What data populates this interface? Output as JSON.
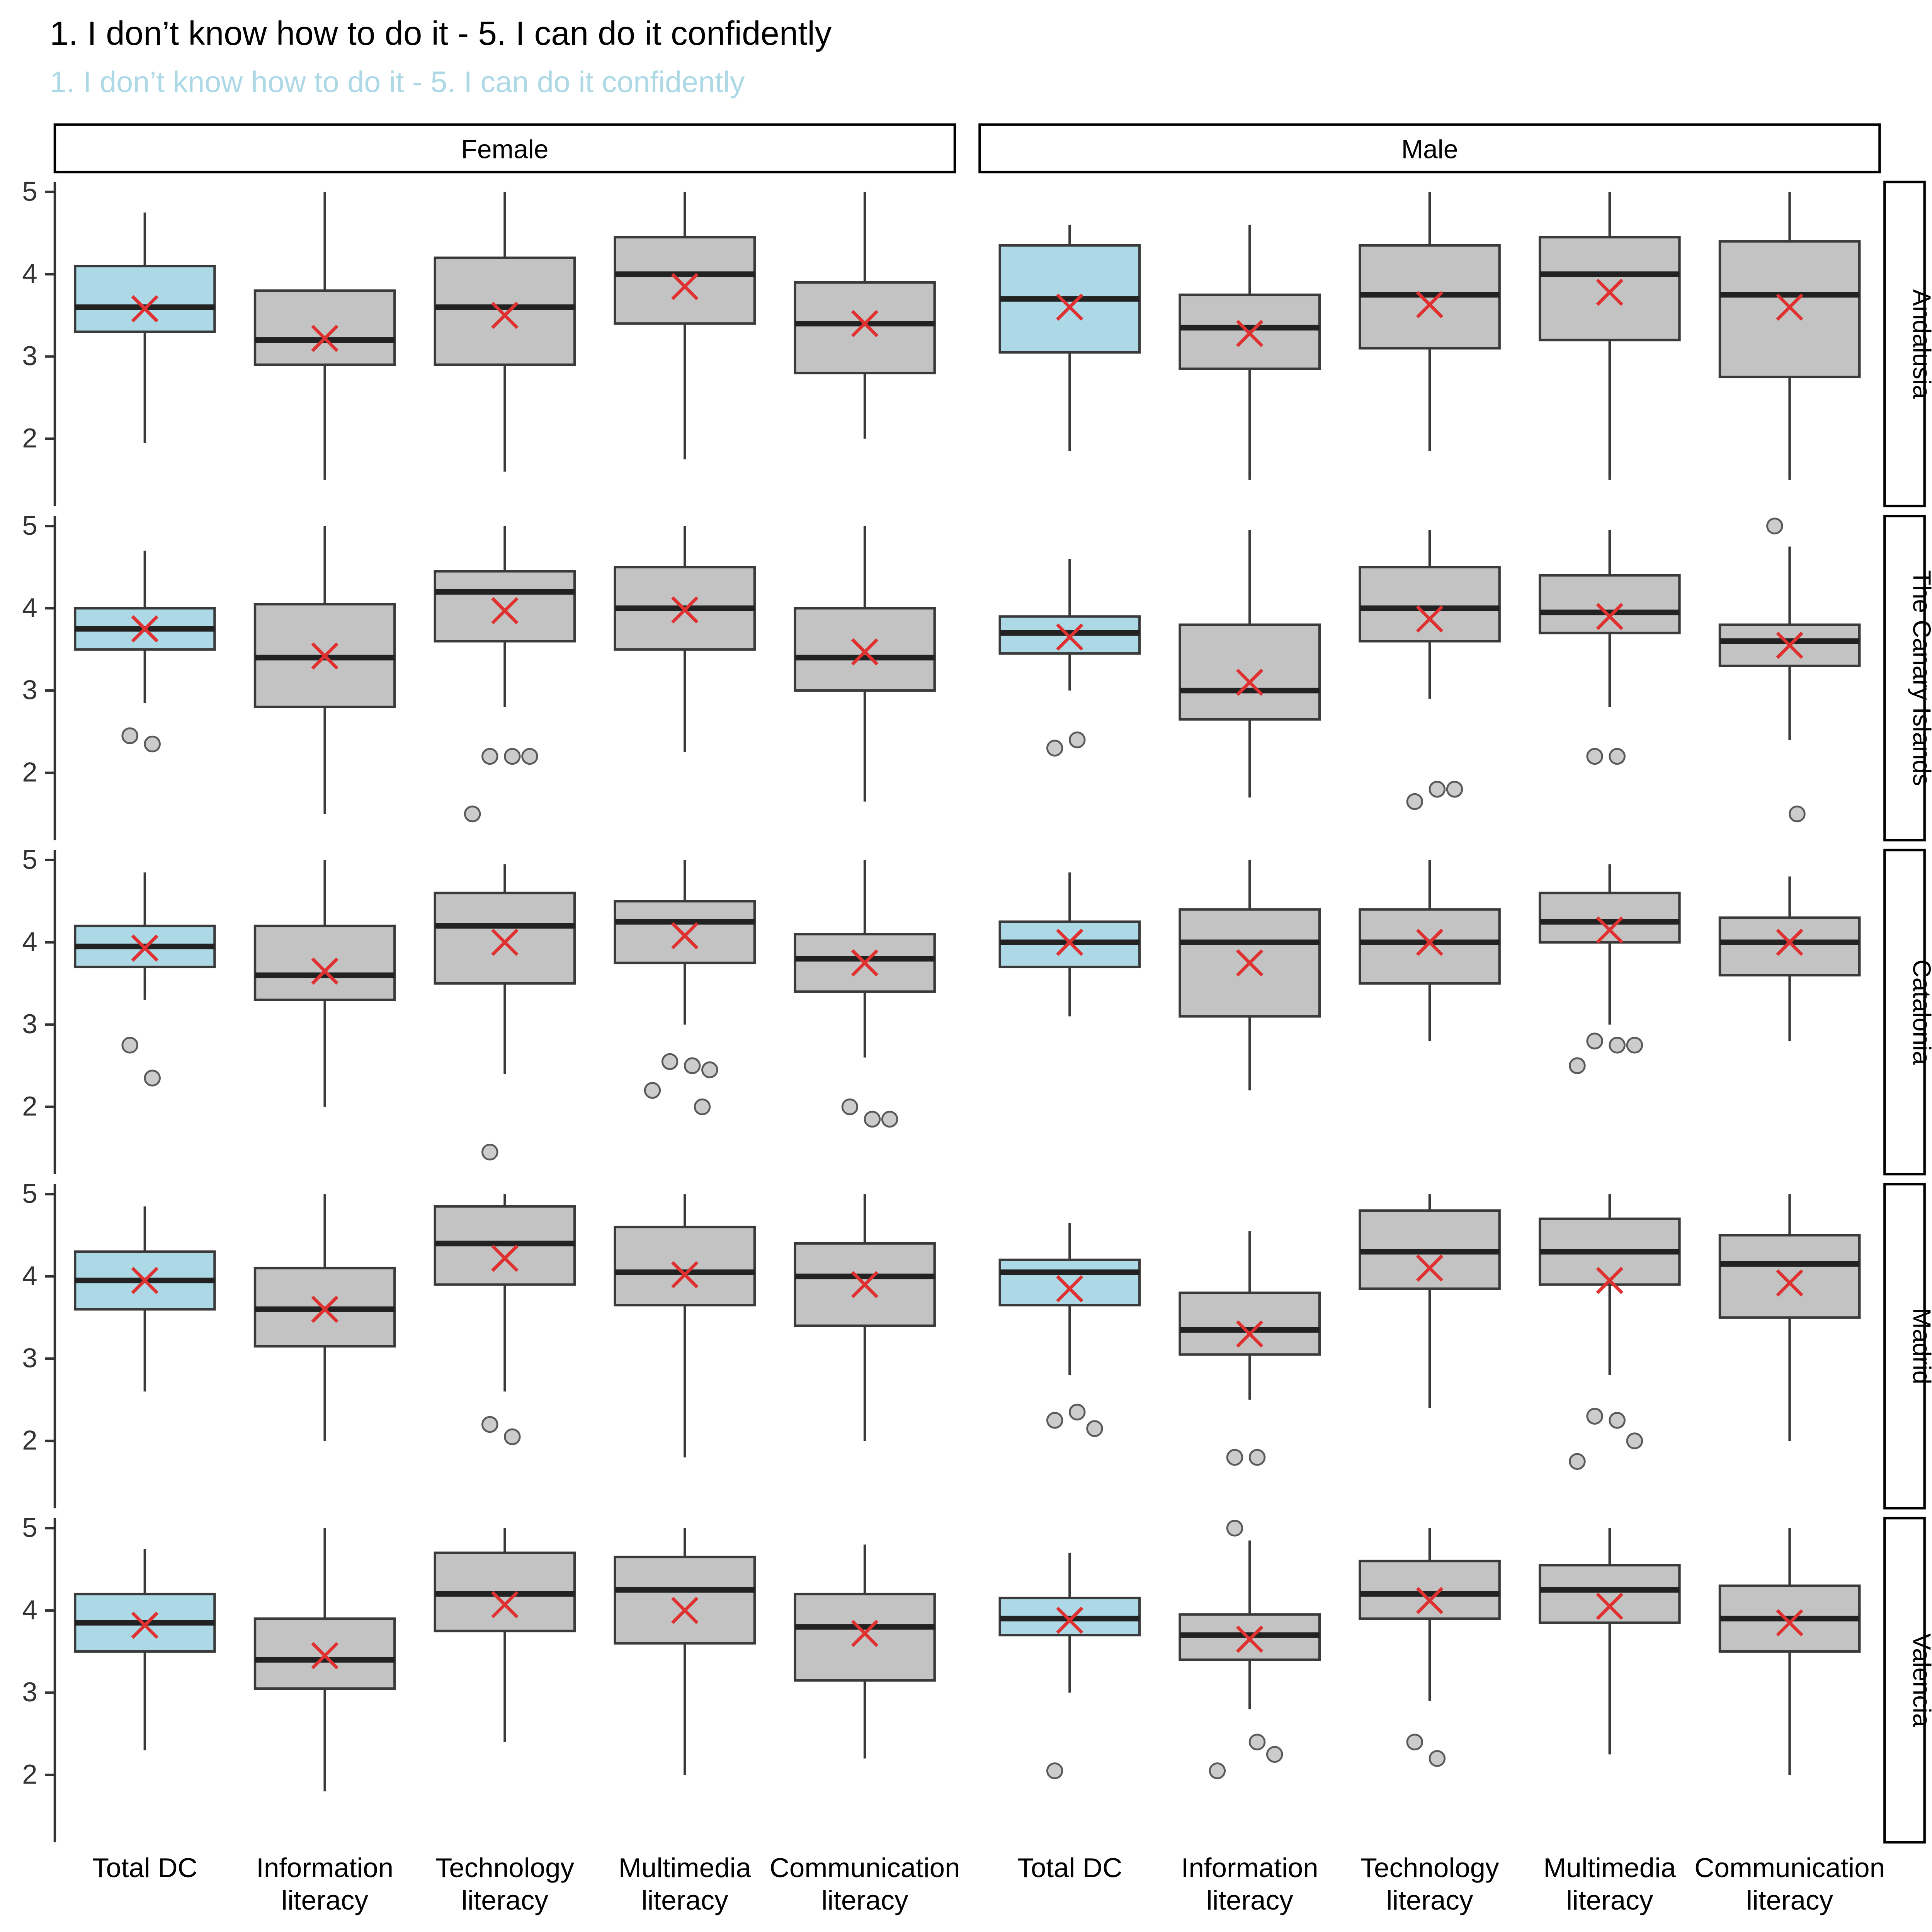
{
  "chart_data": {
    "type": "boxplot",
    "title": "1. I don’t know how to do it - 5. I can do it confidently",
    "subtitle": "1. I don’t know how to do it - 5. I can do it confidently",
    "col_facets": [
      "Female",
      "Male"
    ],
    "row_facets": [
      "Andalusia",
      "The Canary Islands",
      "Catalonia",
      "Madrid",
      "Valencia"
    ],
    "categories": [
      "Total DC",
      "Information literacy",
      "Technology literacy",
      "Multimedia literacy",
      "Communication literacy"
    ],
    "category_labels": [
      [
        "Total DC"
      ],
      [
        "Information",
        "literacy"
      ],
      [
        "Technology",
        "literacy"
      ],
      [
        "Multimedia",
        "literacy"
      ],
      [
        "Communication",
        "literacy"
      ]
    ],
    "y_ticks": [
      5,
      4,
      3,
      2
    ],
    "ylim": [
      1.3,
      5.1
    ],
    "grid": false,
    "legend": null,
    "colors": {
      "highlight_box": "#ADD8E6",
      "box": "#C3C3C3",
      "box_stroke": "#3A3A3A",
      "median": "#222222",
      "mean": "#E03131",
      "outlier_fill": "#CCCCCC",
      "outlier_stroke": "#5A5A5A",
      "subtitle": "#ADD8E6",
      "axis": "#333333"
    },
    "panels": [
      {
        "row": "Andalusia",
        "col": "Female",
        "boxes": [
          {
            "category": "Total DC",
            "low": 1.95,
            "q1": 3.3,
            "median": 3.6,
            "q3": 4.1,
            "high": 4.75,
            "mean": 3.58,
            "outliers": []
          },
          {
            "category": "Information literacy",
            "low": 1.5,
            "q1": 2.9,
            "median": 3.2,
            "q3": 3.8,
            "high": 5.0,
            "mean": 3.22,
            "outliers": []
          },
          {
            "category": "Technology literacy",
            "low": 1.6,
            "q1": 2.9,
            "median": 3.6,
            "q3": 4.2,
            "high": 5.0,
            "mean": 3.5,
            "outliers": []
          },
          {
            "category": "Multimedia literacy",
            "low": 1.75,
            "q1": 3.4,
            "median": 4.0,
            "q3": 4.45,
            "high": 5.0,
            "mean": 3.85,
            "outliers": []
          },
          {
            "category": "Communication literacy",
            "low": 2.0,
            "q1": 2.8,
            "median": 3.4,
            "q3": 3.9,
            "high": 5.0,
            "mean": 3.4,
            "outliers": []
          }
        ]
      },
      {
        "row": "Andalusia",
        "col": "Male",
        "boxes": [
          {
            "category": "Total DC",
            "low": 1.85,
            "q1": 3.05,
            "median": 3.7,
            "q3": 4.35,
            "high": 4.6,
            "mean": 3.6,
            "outliers": []
          },
          {
            "category": "Information literacy",
            "low": 1.5,
            "q1": 2.85,
            "median": 3.35,
            "q3": 3.75,
            "high": 4.6,
            "mean": 3.28,
            "outliers": []
          },
          {
            "category": "Technology literacy",
            "low": 1.85,
            "q1": 3.1,
            "median": 3.75,
            "q3": 4.35,
            "high": 5.0,
            "mean": 3.63,
            "outliers": []
          },
          {
            "category": "Multimedia literacy",
            "low": 1.5,
            "q1": 3.2,
            "median": 4.0,
            "q3": 4.45,
            "high": 5.0,
            "mean": 3.78,
            "outliers": []
          },
          {
            "category": "Communication literacy",
            "low": 1.5,
            "q1": 2.75,
            "median": 3.75,
            "q3": 4.4,
            "high": 5.0,
            "mean": 3.6,
            "outliers": []
          }
        ]
      },
      {
        "row": "The Canary Islands",
        "col": "Female",
        "boxes": [
          {
            "category": "Total DC",
            "low": 2.85,
            "q1": 3.5,
            "median": 3.75,
            "q3": 4.0,
            "high": 4.7,
            "mean": 3.75,
            "outliers": [
              2.45,
              2.35
            ]
          },
          {
            "category": "Information literacy",
            "low": 1.5,
            "q1": 2.8,
            "median": 3.4,
            "q3": 4.05,
            "high": 5.0,
            "mean": 3.42,
            "outliers": []
          },
          {
            "category": "Technology literacy",
            "low": 2.8,
            "q1": 3.6,
            "median": 4.2,
            "q3": 4.45,
            "high": 5.0,
            "mean": 3.97,
            "outliers": [
              2.2,
              2.2,
              2.2,
              1.5
            ]
          },
          {
            "category": "Multimedia literacy",
            "low": 2.25,
            "q1": 3.5,
            "median": 4.0,
            "q3": 4.5,
            "high": 5.0,
            "mean": 3.98,
            "outliers": []
          },
          {
            "category": "Communication literacy",
            "low": 1.65,
            "q1": 3.0,
            "median": 3.4,
            "q3": 4.0,
            "high": 5.0,
            "mean": 3.47,
            "outliers": []
          }
        ]
      },
      {
        "row": "The Canary Islands",
        "col": "Male",
        "boxes": [
          {
            "category": "Total DC",
            "low": 3.0,
            "q1": 3.45,
            "median": 3.7,
            "q3": 3.9,
            "high": 4.6,
            "mean": 3.65,
            "outliers": [
              2.3,
              2.4
            ]
          },
          {
            "category": "Information literacy",
            "low": 1.7,
            "q1": 2.65,
            "median": 3.0,
            "q3": 3.8,
            "high": 4.95,
            "mean": 3.1,
            "outliers": []
          },
          {
            "category": "Technology literacy",
            "low": 2.9,
            "q1": 3.6,
            "median": 4.0,
            "q3": 4.5,
            "high": 4.95,
            "mean": 3.87,
            "outliers": [
              1.65,
              1.8,
              1.8
            ]
          },
          {
            "category": "Multimedia literacy",
            "low": 2.8,
            "q1": 3.7,
            "median": 3.95,
            "q3": 4.4,
            "high": 4.95,
            "mean": 3.9,
            "outliers": [
              2.2,
              2.2
            ]
          },
          {
            "category": "Communication literacy",
            "low": 2.4,
            "q1": 3.3,
            "median": 3.6,
            "q3": 3.8,
            "high": 4.75,
            "mean": 3.55,
            "outliers": [
              5.0,
              1.5
            ]
          }
        ]
      },
      {
        "row": "Catalonia",
        "col": "Female",
        "boxes": [
          {
            "category": "Total DC",
            "low": 3.3,
            "q1": 3.7,
            "median": 3.95,
            "q3": 4.2,
            "high": 4.85,
            "mean": 3.93,
            "outliers": [
              2.75,
              2.35
            ]
          },
          {
            "category": "Information literacy",
            "low": 2.0,
            "q1": 3.3,
            "median": 3.6,
            "q3": 4.2,
            "high": 5.0,
            "mean": 3.65,
            "outliers": []
          },
          {
            "category": "Technology literacy",
            "low": 2.4,
            "q1": 3.5,
            "median": 4.2,
            "q3": 4.6,
            "high": 4.95,
            "mean": 4.0,
            "outliers": [
              1.45
            ]
          },
          {
            "category": "Multimedia literacy",
            "low": 3.0,
            "q1": 3.75,
            "median": 4.25,
            "q3": 4.5,
            "high": 5.0,
            "mean": 4.08,
            "outliers": [
              2.55,
              2.5,
              2.45,
              2.2,
              2.0
            ]
          },
          {
            "category": "Communication literacy",
            "low": 2.6,
            "q1": 3.4,
            "median": 3.8,
            "q3": 4.1,
            "high": 5.0,
            "mean": 3.75,
            "outliers": [
              2.0,
              1.85,
              1.85
            ]
          }
        ]
      },
      {
        "row": "Catalonia",
        "col": "Male",
        "boxes": [
          {
            "category": "Total DC",
            "low": 3.1,
            "q1": 3.7,
            "median": 4.0,
            "q3": 4.25,
            "high": 4.85,
            "mean": 4.0,
            "outliers": []
          },
          {
            "category": "Information literacy",
            "low": 2.2,
            "q1": 3.1,
            "median": 4.0,
            "q3": 4.4,
            "high": 5.0,
            "mean": 3.75,
            "outliers": []
          },
          {
            "category": "Technology literacy",
            "low": 2.8,
            "q1": 3.5,
            "median": 4.0,
            "q3": 4.4,
            "high": 5.0,
            "mean": 4.0,
            "outliers": []
          },
          {
            "category": "Multimedia literacy",
            "low": 3.0,
            "q1": 4.0,
            "median": 4.25,
            "q3": 4.6,
            "high": 4.95,
            "mean": 4.15,
            "outliers": [
              2.8,
              2.75,
              2.75,
              2.5
            ]
          },
          {
            "category": "Communication literacy",
            "low": 2.8,
            "q1": 3.6,
            "median": 4.0,
            "q3": 4.3,
            "high": 4.8,
            "mean": 4.0,
            "outliers": []
          }
        ]
      },
      {
        "row": "Madrid",
        "col": "Female",
        "boxes": [
          {
            "category": "Total DC",
            "low": 2.6,
            "q1": 3.6,
            "median": 3.95,
            "q3": 4.3,
            "high": 4.85,
            "mean": 3.95,
            "outliers": []
          },
          {
            "category": "Information literacy",
            "low": 2.0,
            "q1": 3.15,
            "median": 3.6,
            "q3": 4.1,
            "high": 5.0,
            "mean": 3.6,
            "outliers": []
          },
          {
            "category": "Technology literacy",
            "low": 2.6,
            "q1": 3.9,
            "median": 4.4,
            "q3": 4.85,
            "high": 5.0,
            "mean": 4.22,
            "outliers": [
              2.2,
              2.05
            ]
          },
          {
            "category": "Multimedia literacy",
            "low": 1.8,
            "q1": 3.65,
            "median": 4.05,
            "q3": 4.6,
            "high": 5.0,
            "mean": 4.02,
            "outliers": []
          },
          {
            "category": "Communication literacy",
            "low": 2.0,
            "q1": 3.4,
            "median": 4.0,
            "q3": 4.4,
            "high": 5.0,
            "mean": 3.9,
            "outliers": []
          }
        ]
      },
      {
        "row": "Madrid",
        "col": "Male",
        "boxes": [
          {
            "category": "Total DC",
            "low": 2.8,
            "q1": 3.65,
            "median": 4.05,
            "q3": 4.2,
            "high": 4.65,
            "mean": 3.85,
            "outliers": [
              2.25,
              2.35,
              2.15
            ]
          },
          {
            "category": "Information literacy",
            "low": 2.5,
            "q1": 3.05,
            "median": 3.35,
            "q3": 3.8,
            "high": 4.55,
            "mean": 3.3,
            "outliers": [
              1.8,
              1.8
            ]
          },
          {
            "category": "Technology literacy",
            "low": 2.4,
            "q1": 3.85,
            "median": 4.3,
            "q3": 4.8,
            "high": 5.0,
            "mean": 4.1,
            "outliers": []
          },
          {
            "category": "Multimedia literacy",
            "low": 2.8,
            "q1": 3.9,
            "median": 4.3,
            "q3": 4.7,
            "high": 5.0,
            "mean": 3.95,
            "outliers": [
              2.3,
              2.25,
              2.0,
              1.75
            ]
          },
          {
            "category": "Communication literacy",
            "low": 2.0,
            "q1": 3.5,
            "median": 4.15,
            "q3": 4.5,
            "high": 5.0,
            "mean": 3.92,
            "outliers": []
          }
        ]
      },
      {
        "row": "Valencia",
        "col": "Female",
        "boxes": [
          {
            "category": "Total DC",
            "low": 2.3,
            "q1": 3.5,
            "median": 3.85,
            "q3": 4.2,
            "high": 4.75,
            "mean": 3.82,
            "outliers": []
          },
          {
            "category": "Information literacy",
            "low": 1.8,
            "q1": 3.05,
            "median": 3.4,
            "q3": 3.9,
            "high": 5.0,
            "mean": 3.45,
            "outliers": []
          },
          {
            "category": "Technology literacy",
            "low": 2.4,
            "q1": 3.75,
            "median": 4.2,
            "q3": 4.7,
            "high": 5.0,
            "mean": 4.07,
            "outliers": []
          },
          {
            "category": "Multimedia literacy",
            "low": 2.0,
            "q1": 3.6,
            "median": 4.25,
            "q3": 4.65,
            "high": 5.0,
            "mean": 4.0,
            "outliers": []
          },
          {
            "category": "Communication literacy",
            "low": 2.2,
            "q1": 3.15,
            "median": 3.8,
            "q3": 4.2,
            "high": 4.8,
            "mean": 3.72,
            "outliers": []
          }
        ]
      },
      {
        "row": "Valencia",
        "col": "Male",
        "boxes": [
          {
            "category": "Total DC",
            "low": 3.0,
            "q1": 3.7,
            "median": 3.9,
            "q3": 4.15,
            "high": 4.7,
            "mean": 3.88,
            "outliers": [
              2.05
            ]
          },
          {
            "category": "Information literacy",
            "low": 2.8,
            "q1": 3.4,
            "median": 3.7,
            "q3": 3.95,
            "high": 4.85,
            "mean": 3.65,
            "outliers": [
              5.0,
              2.4,
              2.25,
              2.05
            ]
          },
          {
            "category": "Technology literacy",
            "low": 2.9,
            "q1": 3.9,
            "median": 4.2,
            "q3": 4.6,
            "high": 5.0,
            "mean": 4.12,
            "outliers": [
              2.4,
              2.2
            ]
          },
          {
            "category": "Multimedia literacy",
            "low": 2.25,
            "q1": 3.85,
            "median": 4.25,
            "q3": 4.55,
            "high": 5.0,
            "mean": 4.05,
            "outliers": []
          },
          {
            "category": "Communication literacy",
            "low": 2.0,
            "q1": 3.5,
            "median": 3.9,
            "q3": 4.3,
            "high": 5.0,
            "mean": 3.85,
            "outliers": []
          }
        ]
      }
    ]
  }
}
